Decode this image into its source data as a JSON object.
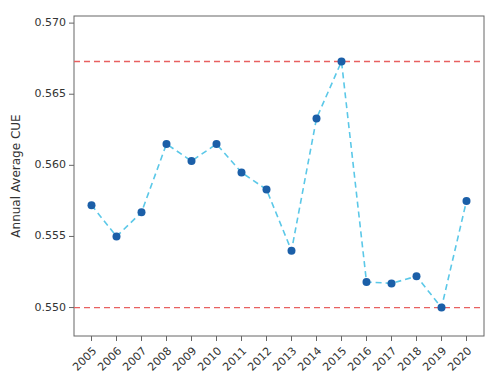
{
  "chart_data": {
    "type": "line",
    "ylabel": "Annual Average CUE",
    "x": [
      2005,
      2006,
      2007,
      2008,
      2009,
      2010,
      2011,
      2012,
      2013,
      2014,
      2015,
      2016,
      2017,
      2018,
      2019,
      2020
    ],
    "values": [
      0.5572,
      0.555,
      0.5567,
      0.5615,
      0.5603,
      0.5615,
      0.5595,
      0.5583,
      0.554,
      0.5633,
      0.5673,
      0.5518,
      0.5517,
      0.5522,
      0.55,
      0.5575
    ],
    "color": "#5BC8E8",
    "line_style": "dashed",
    "marker": "circle",
    "colors": [
      "#1B5FA8",
      "#1B5FA8",
      "#1B5FA8",
      "#1B5FA8",
      "#1B5FA8",
      "#1B5FA8",
      "#1B5FA8",
      "#1B5FA8",
      "#1B5FA8",
      "#1B5FA8",
      "#1B5FA8",
      "#1B5FA8",
      "#1B5FA8",
      "#1B5FA8",
      "#1B5FA8",
      "#1B5FA8"
    ],
    "reference_lines": [
      {
        "value": 0.5673,
        "color": "#E86060",
        "line_style": "dashed"
      },
      {
        "value": 0.55,
        "color": "#E86060",
        "line_style": "dashed"
      }
    ],
    "xlim": [
      2004.3,
      2020.7
    ],
    "xticks": [
      2005,
      2006,
      2007,
      2008,
      2009,
      2010,
      2011,
      2012,
      2013,
      2014,
      2015,
      2016,
      2017,
      2018,
      2019,
      2020
    ],
    "ylim": [
      0.548,
      0.5705
    ],
    "yticks": [
      {
        "value": 0.55,
        "label": "0.550"
      },
      0.555,
      {
        "value": 0.56,
        "label": "0.560"
      },
      0.565,
      {
        "value": 0.57,
        "label": "0.570"
      }
    ],
    "grid": false
  }
}
